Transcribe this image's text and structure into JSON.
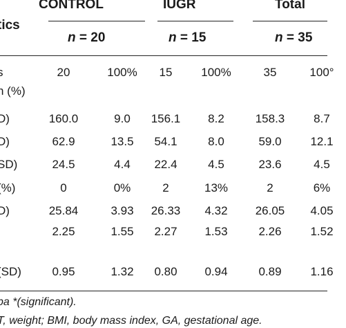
{
  "table": {
    "corner_label": "tics",
    "groups": [
      {
        "name": "CONTROL",
        "n_label": "n",
        "n_value": "= 20"
      },
      {
        "name": "IUGR",
        "n_label": "n",
        "n_value": "= 15"
      },
      {
        "name": "Total",
        "n_label": "n",
        "n_value": "= 35"
      }
    ],
    "rows": [
      {
        "label": "s",
        "cells": [
          "20",
          "100%",
          "15",
          "100%",
          "35",
          "100°"
        ]
      },
      {
        "label": "n (%)",
        "cells": [
          "",
          "",
          "",
          "",
          "",
          ""
        ]
      },
      {
        "label": "D)",
        "cells": [
          "160.0",
          "9.0",
          "156.1",
          "8.2",
          "158.3",
          "8.7"
        ]
      },
      {
        "label": "D)",
        "cells": [
          "62.9",
          "13.5",
          "54.1",
          "8.0",
          "59.0",
          "12.1"
        ]
      },
      {
        "label": "SD)",
        "cells": [
          "24.5",
          "4.4",
          "22.4",
          "4.5",
          "23.6",
          "4.5"
        ]
      },
      {
        "label": "(%)",
        "cells": [
          "0",
          "0%",
          "2",
          "13%",
          "2",
          "6%"
        ]
      },
      {
        "label": "D)",
        "cells": [
          "25.84",
          "3.93",
          "26.33",
          "4.32",
          "26.05",
          "4.05"
        ]
      },
      {
        "label": "",
        "cells": [
          "2.25",
          "1.55",
          "2.27",
          "1.53",
          "2.26",
          "1.52"
        ]
      },
      {
        "label": "(SD)",
        "cells": [
          "0.95",
          "1.32",
          "0.80",
          "0.94",
          "0.89",
          "1.16"
        ]
      }
    ],
    "footnotes": [
      "pa *(significant).",
      "T, weight; BMI, body mass index, GA, gestational age."
    ]
  }
}
